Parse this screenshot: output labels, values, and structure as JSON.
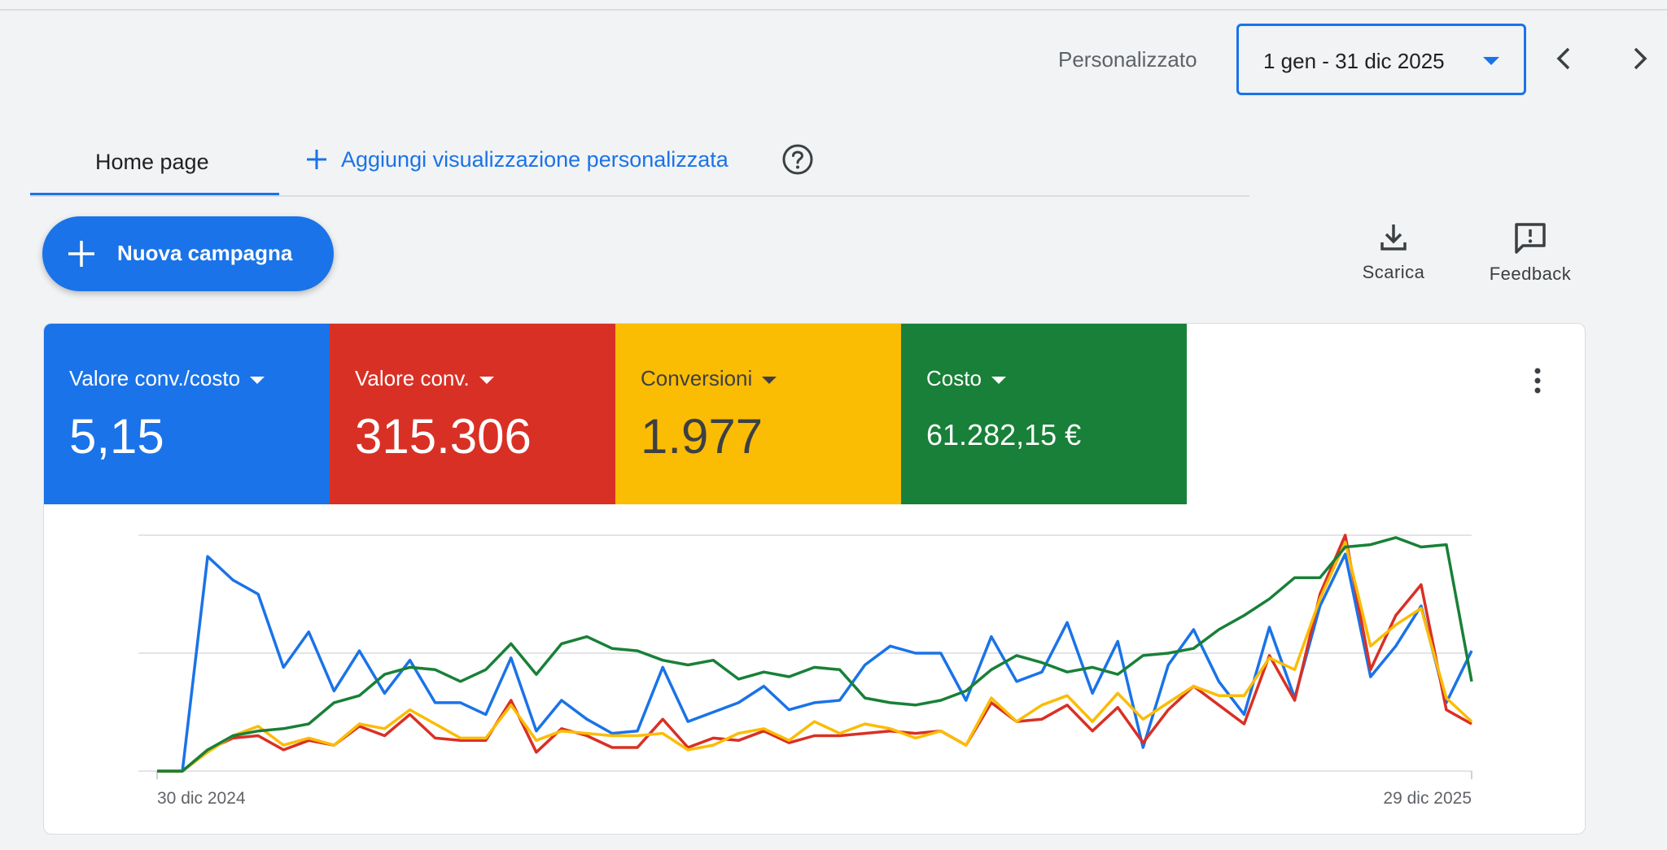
{
  "date_range": {
    "preset_label": "Personalizzato",
    "value": "1 gen - 31 dic 2025"
  },
  "tabs": [
    {
      "label": "Home page",
      "active": true
    },
    {
      "label": "Aggiungi visualizzazione personalizzata",
      "active": false
    }
  ],
  "actions": {
    "new_campaign": "Nuova campagna",
    "download": "Scarica",
    "feedback": "Feedback"
  },
  "icons": [
    "chevron-left-icon",
    "chevron-right-icon",
    "plus-icon",
    "help-icon",
    "download-icon",
    "feedback-icon",
    "more-vert-icon"
  ],
  "metrics": [
    {
      "label": "Valore conv./costo",
      "value": "5,15",
      "color": "#1a73e8",
      "text_color": "#ffffff"
    },
    {
      "label": "Valore conv.",
      "value": "315.306",
      "color": "#d93025",
      "text_color": "#ffffff"
    },
    {
      "label": "Conversioni",
      "value": "1.977",
      "color": "#fbbc04",
      "text_color": "#3c4043"
    },
    {
      "label": "Costo",
      "value": "61.282,15 €",
      "color": "#188038",
      "text_color": "#ffffff"
    }
  ],
  "chart_data": {
    "type": "line",
    "x_start_label": "30 dic 2024",
    "x_end_label": "29 dic 2025",
    "y_axis_labels_shown": false,
    "grid": true,
    "y_range": [
      0,
      100
    ],
    "series": [
      {
        "color": "#1a73e8",
        "values": [
          0,
          0,
          91,
          81,
          75,
          44,
          59,
          34,
          51,
          33,
          47,
          29,
          29,
          24,
          48,
          17,
          30,
          22,
          16,
          17,
          44,
          21,
          25,
          29,
          36,
          26,
          29,
          30,
          45,
          53,
          50,
          50,
          30,
          57,
          38,
          42,
          63,
          33,
          55,
          10,
          45,
          60,
          38,
          24,
          61,
          31,
          70,
          92,
          40,
          53,
          70,
          29,
          51
        ]
      },
      {
        "color": "#d93025",
        "values": [
          0,
          0,
          9,
          14,
          15,
          9,
          13,
          11,
          19,
          15,
          24,
          14,
          13,
          13,
          30,
          8,
          18,
          15,
          10,
          10,
          22,
          10,
          14,
          13,
          17,
          12,
          15,
          15,
          16,
          17,
          16,
          17,
          11,
          29,
          21,
          22,
          28,
          17,
          27,
          12,
          26,
          36,
          28,
          20,
          49,
          30,
          75,
          100,
          43,
          66,
          79,
          26,
          20
        ]
      },
      {
        "color": "#fbbc04",
        "values": [
          0,
          0,
          8,
          15,
          19,
          11,
          14,
          11,
          20,
          18,
          26,
          20,
          14,
          14,
          28,
          13,
          17,
          16,
          15,
          15,
          16,
          9,
          11,
          16,
          18,
          13,
          21,
          16,
          20,
          18,
          14,
          17,
          11,
          31,
          21,
          28,
          32,
          21,
          33,
          22,
          29,
          36,
          32,
          32,
          48,
          43,
          73,
          97,
          53,
          62,
          69,
          31,
          21
        ]
      },
      {
        "color": "#188038",
        "values": [
          0,
          0,
          9,
          15,
          17,
          18,
          20,
          29,
          32,
          41,
          44,
          43,
          38,
          43,
          54,
          41,
          54,
          57,
          52,
          51,
          47,
          45,
          47,
          39,
          42,
          40,
          44,
          43,
          31,
          29,
          28,
          30,
          34,
          43,
          49,
          46,
          42,
          44,
          41,
          49,
          50,
          52,
          60,
          66,
          73,
          82,
          82,
          95,
          96,
          99,
          95,
          96,
          38
        ]
      }
    ]
  }
}
